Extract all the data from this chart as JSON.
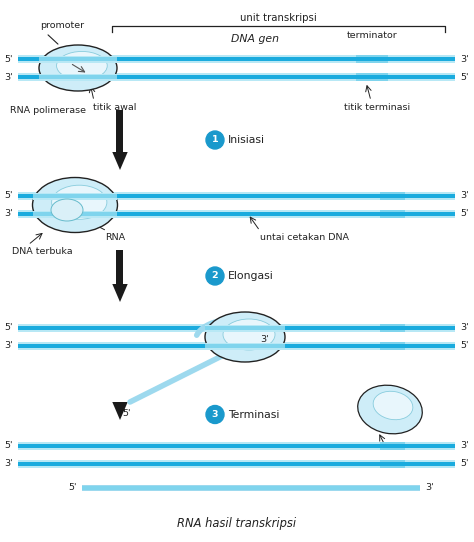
{
  "bg_color": "#ffffff",
  "dna_dark": "#1aabde",
  "dna_light": "#7fd4ed",
  "dna_lighter": "#b8e8f5",
  "rna_color": "#9dd9ee",
  "polymerase_fill": "#ceedf8",
  "polymerase_inner": "#e8f6fc",
  "polymerase_edge": "#222222",
  "arrow_color": "#1a1a1a",
  "circle_color": "#1a99cc",
  "text_color": "#222222",
  "title": "RNA hasil transkripsi",
  "labels": {
    "unit_transkripsi": "unit transkripsi",
    "dna_gen": "DNA gen",
    "terminator": "terminator",
    "promoter": "promoter",
    "rna_pol": "RNA polimerase",
    "titik_awal": "titik awal",
    "titik_terminasi": "titik terminasi",
    "inisiasi": "Inisiasi",
    "elongasi": "Elongasi",
    "terminasi": "Terminasi",
    "dna_terbuka": "DNA terbuka",
    "rna": "RNA",
    "untai_cetakan": "untai cetakan DNA"
  }
}
